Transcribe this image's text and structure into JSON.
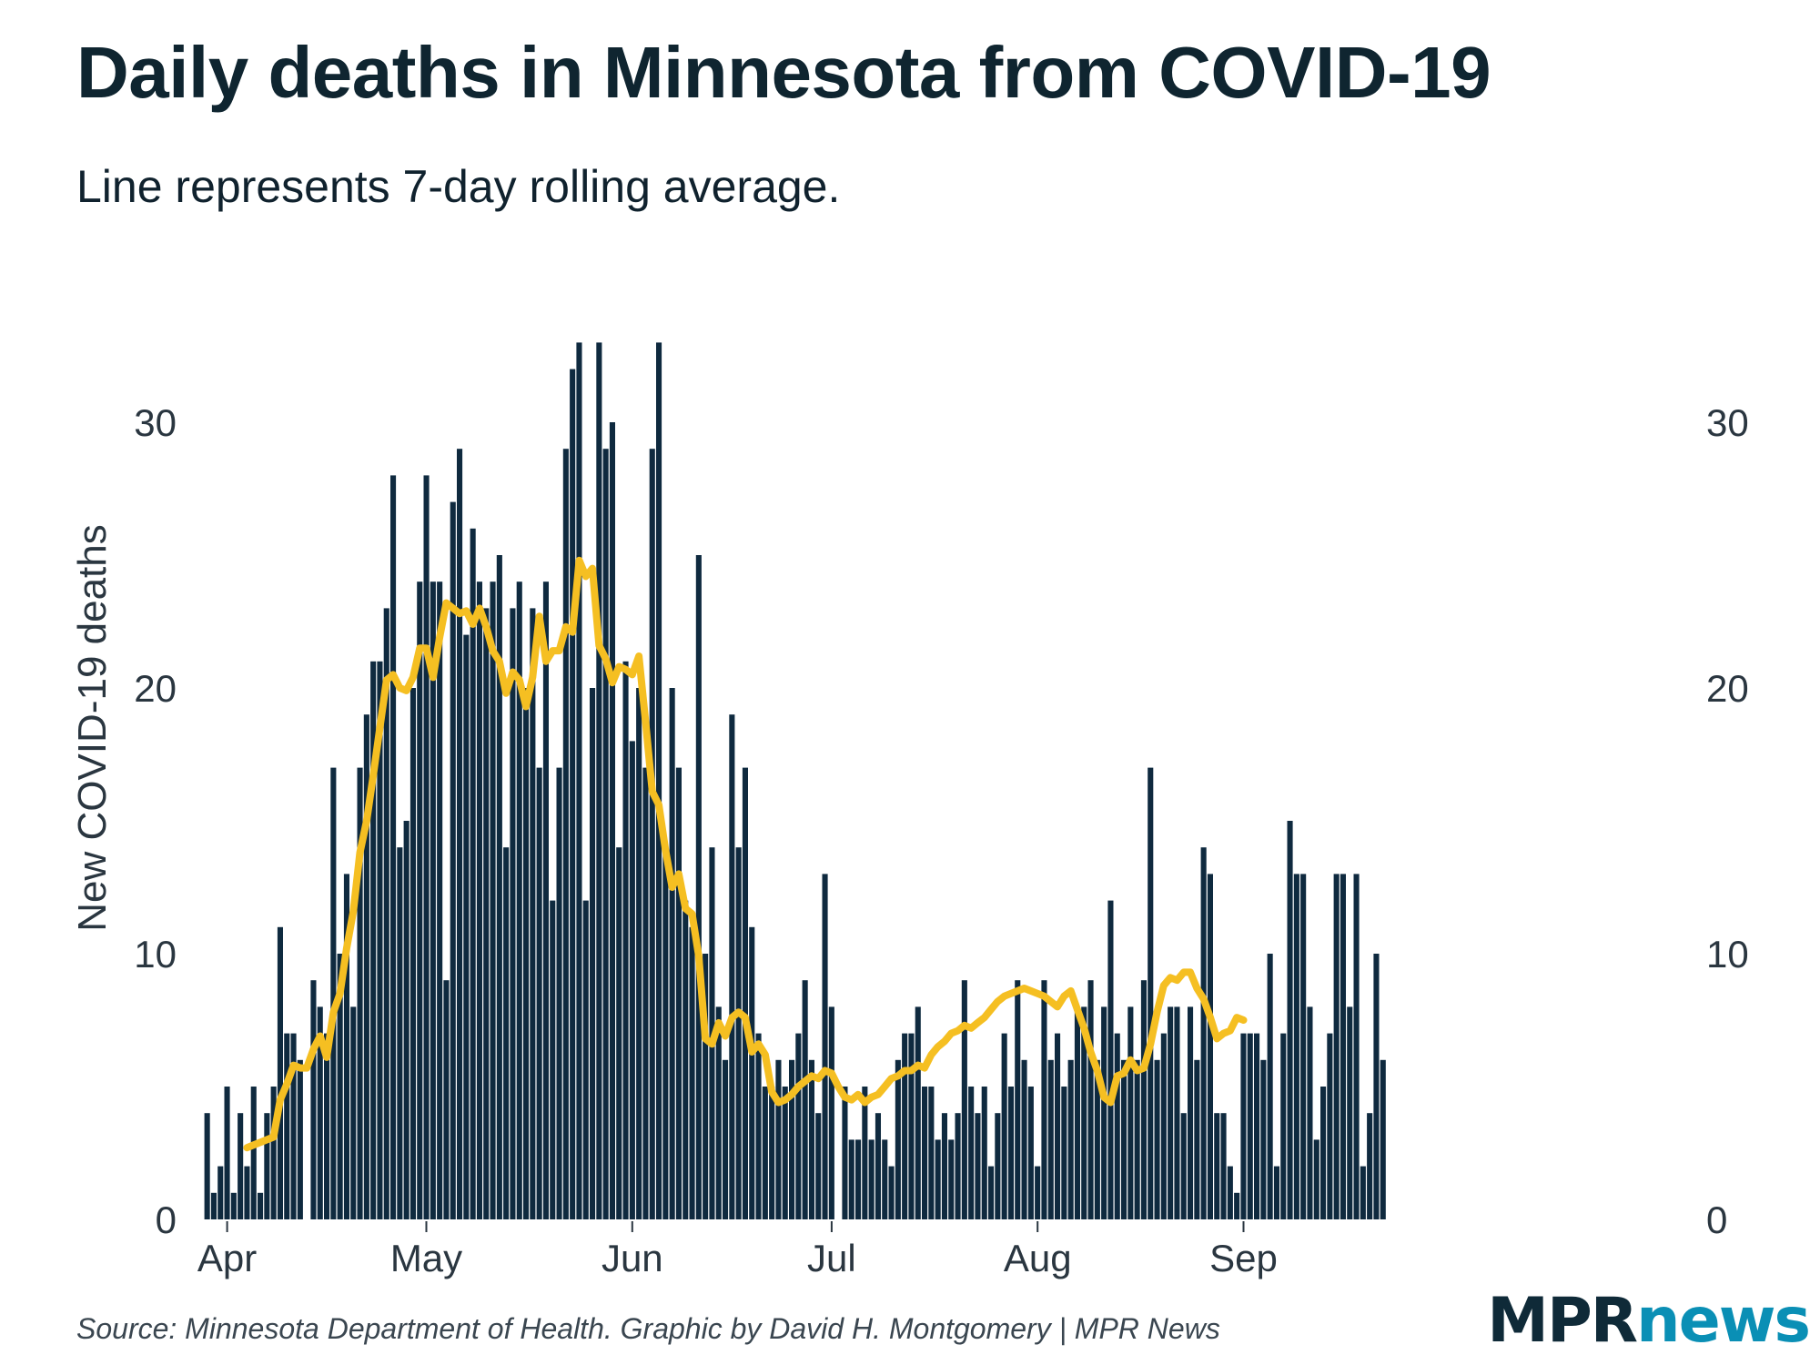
{
  "title": "Daily deaths in Minnesota from COVID-19",
  "subtitle": "Line represents 7-day rolling average.",
  "source": "Source: Minnesota Department of Health. Graphic by David H. Montgomery | MPR News",
  "logo": {
    "part1": "MPR",
    "part2": "news"
  },
  "colors": {
    "bars": "#0f2a3f",
    "line": "#f5bf22",
    "text": "#2a3640",
    "logo_dark": "#0f2a38",
    "logo_light": "#0a8fb5"
  },
  "chart_data": {
    "type": "bar",
    "xlabel": "",
    "ylabel": "New COVID-19 deaths",
    "ylim": [
      0,
      35
    ],
    "yticks": [
      0,
      10,
      20,
      30
    ],
    "grid": false,
    "axis_labels_both_sides": true,
    "x_start": "2020-03-29",
    "xtick_labels": [
      "Apr",
      "May",
      "Jun",
      "Jul",
      "Aug",
      "Sep"
    ],
    "xtick_days": [
      3,
      33,
      64,
      94,
      125,
      156
    ],
    "series": [
      {
        "type": "bar",
        "values": [
          4,
          1,
          2,
          5,
          1,
          4,
          2,
          5,
          1,
          4,
          5,
          11,
          7,
          7,
          6,
          null,
          9,
          8,
          7,
          17,
          10,
          13,
          8,
          17,
          19,
          21,
          21,
          23,
          28,
          14,
          15,
          20,
          24,
          28,
          24,
          24,
          9,
          27,
          29,
          22,
          26,
          24,
          23,
          24,
          25,
          14,
          23,
          24,
          20,
          23,
          17,
          24,
          12,
          17,
          29,
          32,
          33,
          12,
          20,
          33,
          29,
          30,
          14,
          21,
          18,
          20,
          17,
          29,
          33,
          14,
          20,
          17,
          12,
          11,
          25,
          10,
          14,
          8,
          6,
          19,
          14,
          17,
          11,
          7,
          5,
          5,
          6,
          5,
          6,
          7,
          9,
          6,
          4,
          13,
          8,
          null,
          5,
          3,
          3,
          5,
          3,
          4,
          3,
          2,
          6,
          7,
          7,
          8,
          5,
          5,
          3,
          4,
          3,
          4,
          9,
          5,
          4,
          5,
          2,
          4,
          7,
          5,
          9,
          6,
          5,
          2,
          9,
          6,
          7,
          5,
          6,
          8,
          8,
          9,
          6,
          8,
          12,
          7,
          6,
          8,
          6,
          9,
          17,
          6,
          7,
          8,
          8,
          4,
          8,
          6,
          14,
          13,
          4,
          4,
          2,
          1,
          7,
          7,
          7,
          6,
          10,
          2,
          7,
          15,
          13,
          13,
          8,
          3,
          5,
          7,
          13,
          13,
          8,
          13,
          2,
          4,
          10,
          6
        ]
      },
      {
        "type": "line",
        "values": [
          null,
          null,
          null,
          null,
          null,
          null,
          2.7,
          2.8,
          2.9,
          3.0,
          3.1,
          4.5,
          5.1,
          5.8,
          5.7,
          5.7,
          6.4,
          6.9,
          6.1,
          7.8,
          8.5,
          10.2,
          11.6,
          13.8,
          15.0,
          16.7,
          18.5,
          20.3,
          20.5,
          20.0,
          19.9,
          20.4,
          21.5,
          21.5,
          20.4,
          21.9,
          23.2,
          23.0,
          22.8,
          22.9,
          22.4,
          23.0,
          22.3,
          21.4,
          21.0,
          19.8,
          20.6,
          20.3,
          19.3,
          20.4,
          22.7,
          21.0,
          21.4,
          21.4,
          22.3,
          22.1,
          24.8,
          24.2,
          24.5,
          21.6,
          21.1,
          20.2,
          20.8,
          20.7,
          20.5,
          21.2,
          18.7,
          16.1,
          15.6,
          13.9,
          12.5,
          13.0,
          11.7,
          11.5,
          9.9,
          6.8,
          6.6,
          7.4,
          6.9,
          7.6,
          7.8,
          7.6,
          6.3,
          6.6,
          6.2,
          4.8,
          4.4,
          4.5,
          4.7,
          5.0,
          5.2,
          5.4,
          5.3,
          5.6,
          5.5,
          5.0,
          4.6,
          4.5,
          4.7,
          4.4,
          4.6,
          4.7,
          5.0,
          5.3,
          5.4,
          5.6,
          5.6,
          5.8,
          5.7,
          6.2,
          6.5,
          6.7,
          7.0,
          7.1,
          7.3,
          7.2,
          7.4,
          7.6,
          7.9,
          8.2,
          8.4,
          8.5,
          8.6,
          8.7,
          8.6,
          8.5,
          8.4,
          8.2,
          8.0,
          8.4,
          8.6,
          7.9,
          7.2,
          6.3,
          5.6,
          4.6,
          4.4,
          5.4,
          5.5,
          6.0,
          5.6,
          5.7,
          6.6,
          7.8,
          8.8,
          9.1,
          9.0,
          9.3,
          9.3,
          8.7,
          8.3,
          7.6,
          6.8,
          7.0,
          7.1,
          7.6,
          7.5
        ]
      }
    ]
  }
}
